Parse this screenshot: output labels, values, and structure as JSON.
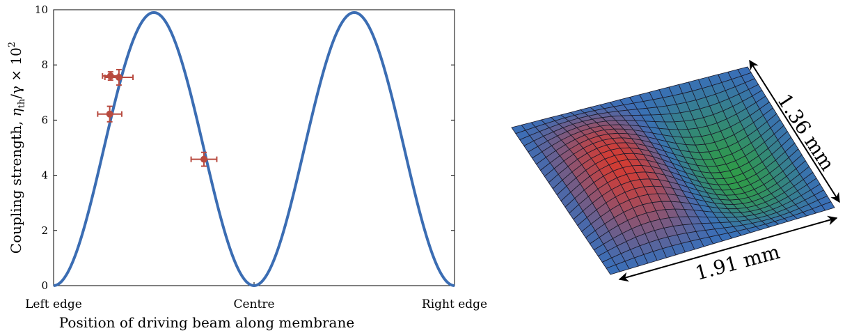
{
  "chart_data": [
    {
      "type": "line",
      "title": "",
      "xlabel": "Position of driving beam along membrane",
      "ylabel": "Coupling strength, η_th/γ × 10²",
      "ylabel_parts": {
        "main": "Coupling strength, ",
        "eta": "η",
        "eta_sub": "th",
        "rest": "/γ × 10",
        "sup": "2"
      },
      "xlim": [
        0,
        1
      ],
      "ylim": [
        0,
        10
      ],
      "yticks": [
        0,
        2,
        4,
        6,
        8,
        10
      ],
      "xtick_positions": [
        0,
        0.5,
        1
      ],
      "xtick_labels": [
        "Left edge",
        "Centre",
        "Right edge"
      ],
      "series": [
        {
          "kind": "line",
          "function": "9.9·sin²(2πx)",
          "amplitude": 9.9,
          "color": "#3b6db3"
        },
        {
          "kind": "scatter_with_errorbars",
          "color": "#b84a3f",
          "points": [
            {
              "x": 0.142,
              "y": 7.6,
              "xerr": 0.02,
              "yerr": 0.15
            },
            {
              "x": 0.163,
              "y": 7.55,
              "xerr": 0.035,
              "yerr": 0.28
            },
            {
              "x": 0.14,
              "y": 6.22,
              "xerr": 0.03,
              "yerr": 0.28
            },
            {
              "x": 0.375,
              "y": 4.58,
              "xerr": 0.032,
              "yerr": 0.25
            }
          ]
        }
      ],
      "grid": false,
      "legend": "none"
    },
    {
      "type": "surface",
      "title": "",
      "description_visible_labels": [
        "1.36 mm",
        "1.91 mm"
      ],
      "colors": {
        "low": "#2f9a4a",
        "mid": "#3a6fb8",
        "high": "#d23c34"
      }
    }
  ],
  "dimensions": {
    "height_label": "1.36 mm",
    "width_label": "1.91 mm"
  }
}
